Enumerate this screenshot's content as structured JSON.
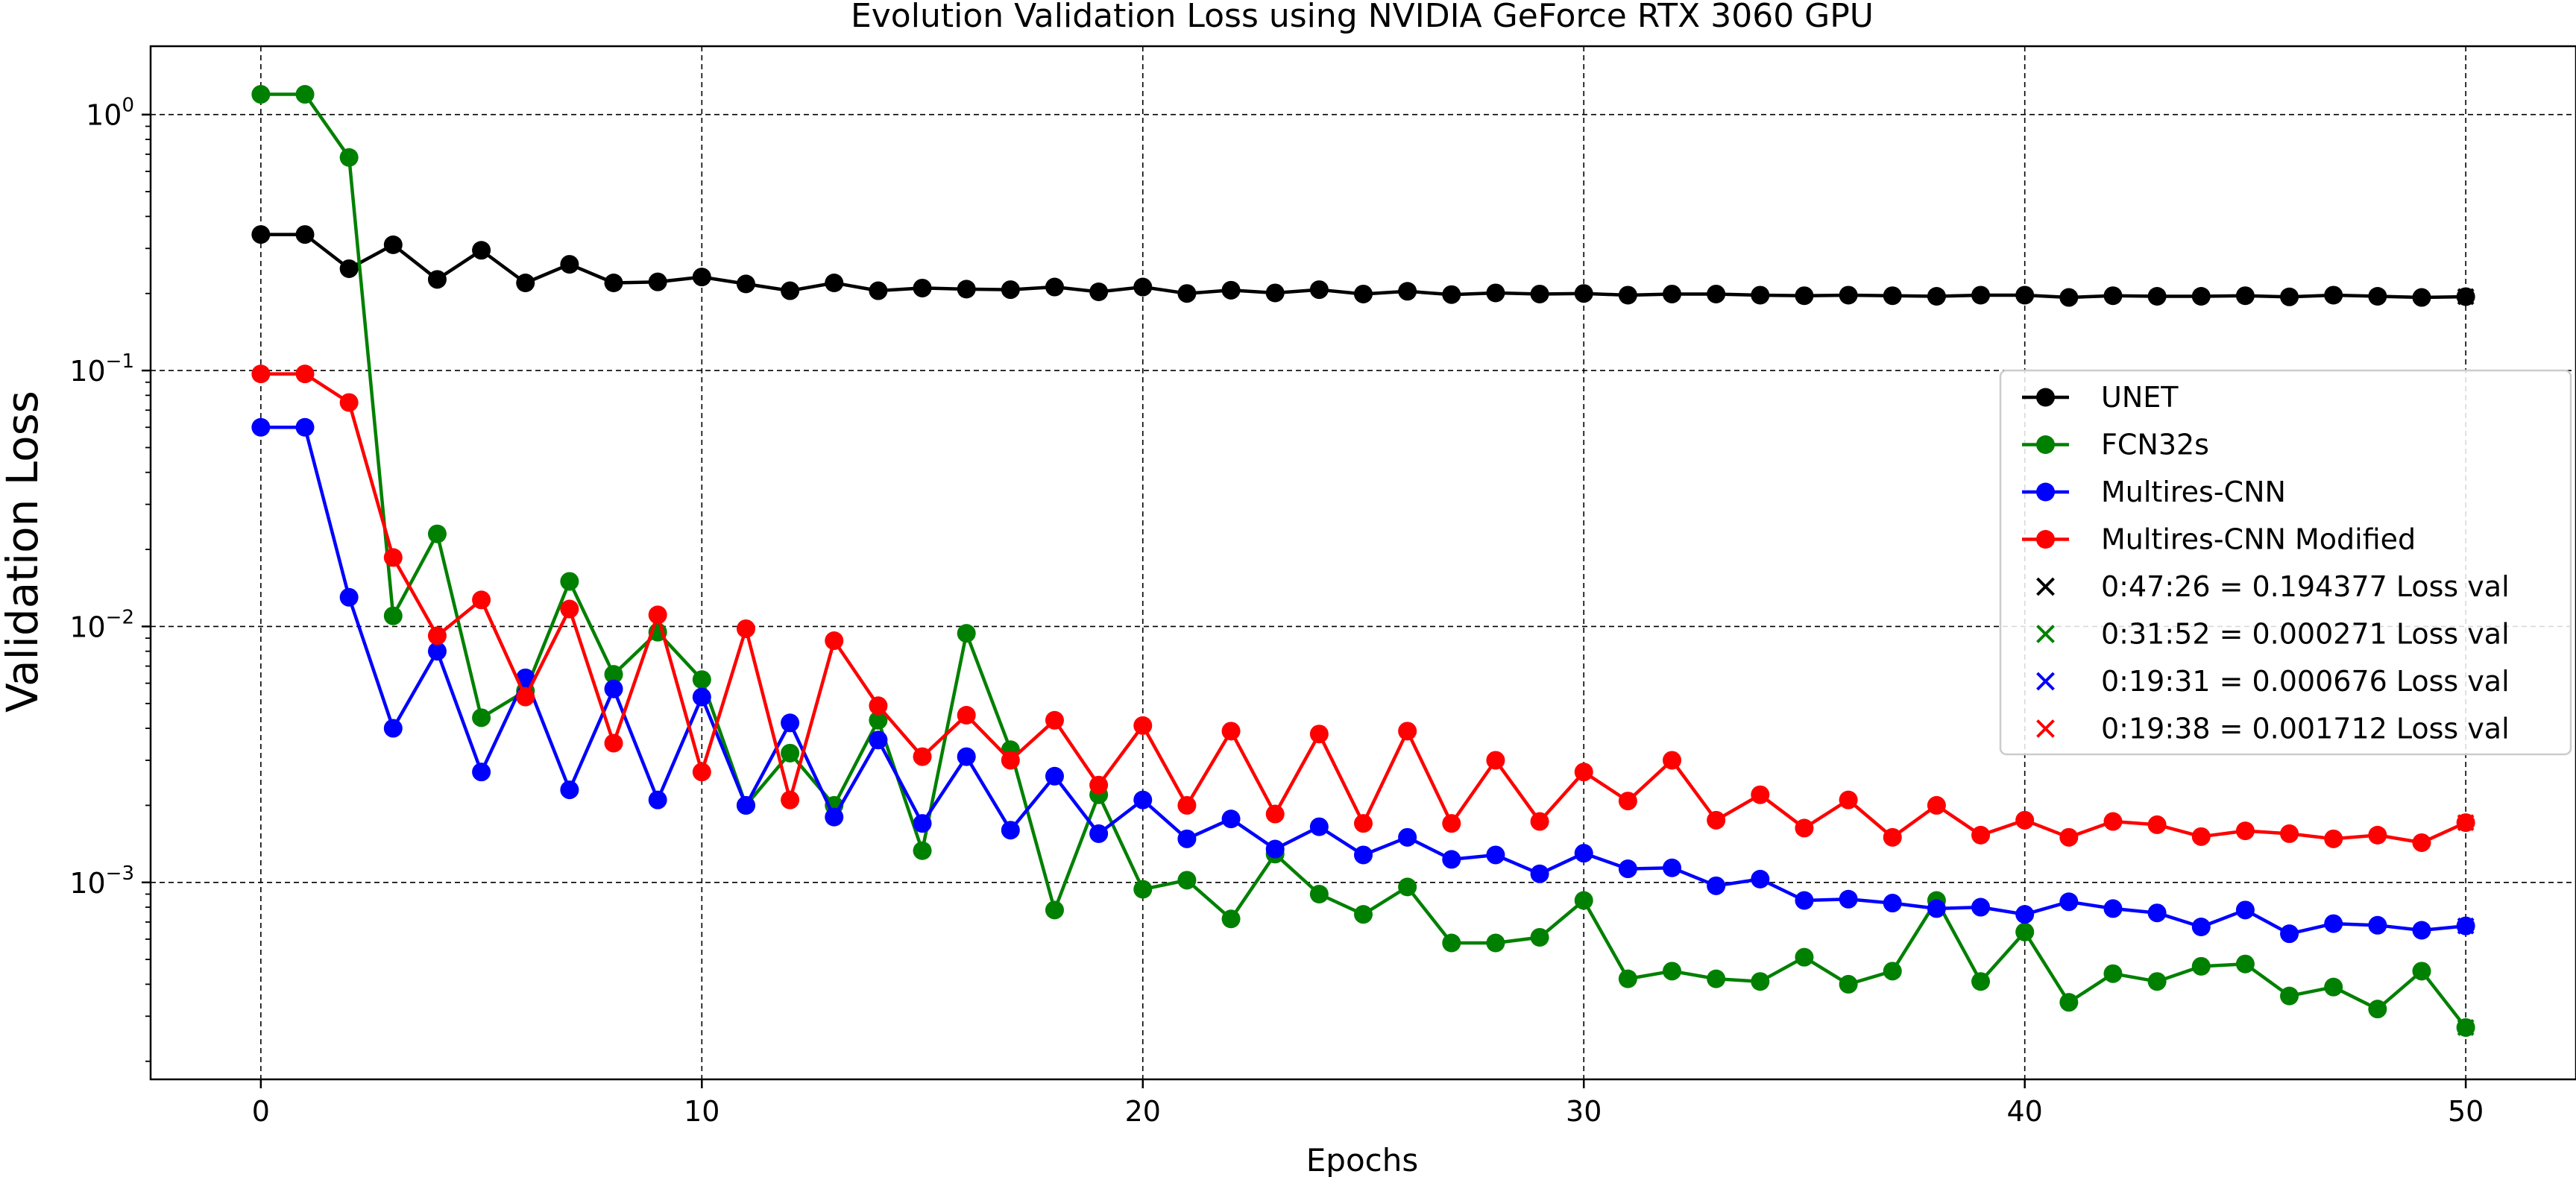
{
  "chart_data": {
    "type": "line",
    "title": "Evolution Validation Loss using NVIDIA GeForce RTX 3060 GPU",
    "xlabel": "Epochs",
    "ylabel": "Validation Loss",
    "yscale": "log",
    "xlim": [
      -2.5,
      52.5
    ],
    "ylim": [
      0.00017,
      1.85
    ],
    "grid": true,
    "legend_position": "center-right",
    "x_ticks": [
      0,
      10,
      20,
      30,
      40,
      50
    ],
    "x_tick_labels": [
      "0",
      "10",
      "20",
      "30",
      "40",
      "50"
    ],
    "y_ticks": [
      0.001,
      0.01,
      0.1,
      1
    ],
    "y_tick_labels": [
      {
        "base": "10",
        "exp": "−3"
      },
      {
        "base": "10",
        "exp": "−2"
      },
      {
        "base": "10",
        "exp": "−1"
      },
      {
        "base": "10",
        "exp": "0"
      }
    ],
    "x": [
      0,
      1,
      2,
      3,
      4,
      5,
      6,
      7,
      8,
      9,
      10,
      11,
      12,
      13,
      14,
      15,
      16,
      17,
      18,
      19,
      20,
      21,
      22,
      23,
      24,
      25,
      26,
      27,
      28,
      29,
      30,
      31,
      32,
      33,
      34,
      35,
      36,
      37,
      38,
      39,
      40,
      41,
      42,
      43,
      44,
      45,
      46,
      47,
      48,
      49,
      50
    ],
    "series": [
      {
        "name": "UNET",
        "color": "#000000",
        "values": [
          0.34,
          0.34,
          0.25,
          0.31,
          0.227,
          0.295,
          0.22,
          0.26,
          0.22,
          0.222,
          0.232,
          0.218,
          0.205,
          0.22,
          0.205,
          0.21,
          0.208,
          0.207,
          0.212,
          0.203,
          0.212,
          0.2,
          0.206,
          0.201,
          0.207,
          0.199,
          0.204,
          0.198,
          0.201,
          0.199,
          0.2,
          0.197,
          0.199,
          0.199,
          0.197,
          0.196,
          0.197,
          0.196,
          0.195,
          0.197,
          0.197,
          0.193,
          0.196,
          0.195,
          0.195,
          0.196,
          0.194,
          0.197,
          0.195,
          0.193,
          0.194377
        ]
      },
      {
        "name": "FCN32s",
        "color": "#008000",
        "values": [
          1.2,
          1.2,
          0.68,
          0.011,
          0.023,
          0.0044,
          0.0056,
          0.015,
          0.0065,
          0.0095,
          0.0062,
          0.002,
          0.0032,
          0.002,
          0.0043,
          0.00133,
          0.0094,
          0.0033,
          0.00078,
          0.0022,
          0.00094,
          0.00102,
          0.00072,
          0.00129,
          0.0009,
          0.00075,
          0.00096,
          0.00058,
          0.00058,
          0.00061,
          0.00085,
          0.00042,
          0.00045,
          0.00042,
          0.00041,
          0.00051,
          0.0004,
          0.00045,
          0.00085,
          0.00041,
          0.00064,
          0.00034,
          0.00044,
          0.00041,
          0.00047,
          0.00048,
          0.00036,
          0.00039,
          0.00032,
          0.00045,
          0.000271
        ]
      },
      {
        "name": "Multires-CNN",
        "color": "#0000ff",
        "values": [
          0.06,
          0.06,
          0.013,
          0.004,
          0.008,
          0.0027,
          0.0063,
          0.0023,
          0.0057,
          0.0021,
          0.0053,
          0.002,
          0.0042,
          0.0018,
          0.0036,
          0.0017,
          0.0031,
          0.0016,
          0.0026,
          0.00155,
          0.0021,
          0.00148,
          0.00177,
          0.00135,
          0.00165,
          0.00128,
          0.0015,
          0.00123,
          0.00128,
          0.00108,
          0.0013,
          0.00113,
          0.00114,
          0.00097,
          0.00103,
          0.00085,
          0.00086,
          0.00083,
          0.00079,
          0.0008,
          0.00075,
          0.00084,
          0.00079,
          0.00076,
          0.00067,
          0.00078,
          0.00063,
          0.00069,
          0.00068,
          0.00065,
          0.000676
        ]
      },
      {
        "name": "Multires-CNN Modified",
        "color": "#ff0000",
        "values": [
          0.097,
          0.097,
          0.075,
          0.0186,
          0.0092,
          0.0127,
          0.0053,
          0.0117,
          0.0035,
          0.0111,
          0.0027,
          0.0098,
          0.0021,
          0.0088,
          0.0049,
          0.0031,
          0.0045,
          0.003,
          0.0043,
          0.0024,
          0.0041,
          0.002,
          0.0039,
          0.00185,
          0.0038,
          0.0017,
          0.0039,
          0.0017,
          0.003,
          0.00173,
          0.0027,
          0.00208,
          0.003,
          0.00175,
          0.0022,
          0.00163,
          0.0021,
          0.0015,
          0.002,
          0.00153,
          0.00175,
          0.0015,
          0.00173,
          0.00168,
          0.00151,
          0.00159,
          0.00155,
          0.00148,
          0.00153,
          0.00143,
          0.001712
        ]
      }
    ],
    "final_markers": [
      {
        "label": "0:47:26 = 0.194377 Loss val",
        "color": "#000000",
        "x": 50,
        "y": 0.194377
      },
      {
        "label": "0:31:52 = 0.000271 Loss val",
        "color": "#008000",
        "x": 50,
        "y": 0.000271
      },
      {
        "label": "0:19:31 = 0.000676 Loss val",
        "color": "#0000ff",
        "x": 50,
        "y": 0.000676
      },
      {
        "label": "0:19:38 = 0.001712 Loss val",
        "color": "#ff0000",
        "x": 50,
        "y": 0.001712
      }
    ]
  }
}
